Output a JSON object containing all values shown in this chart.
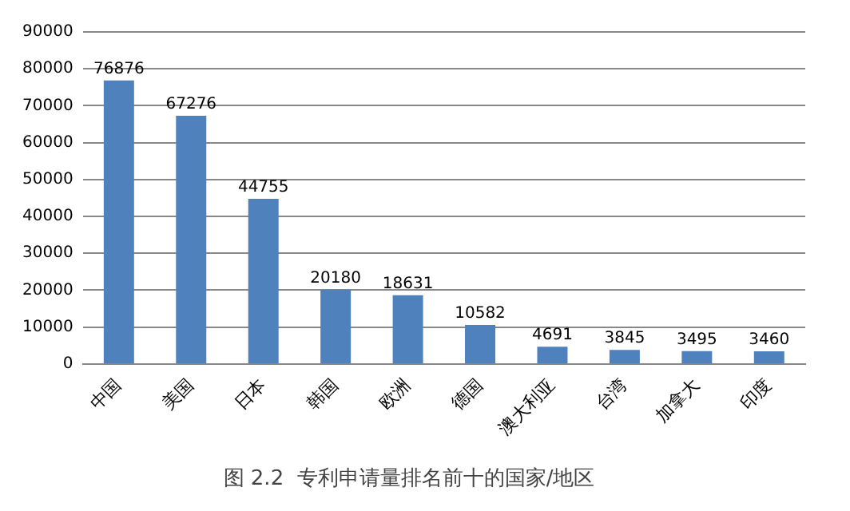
{
  "chart_data": {
    "type": "bar",
    "title": "图 2.2  专利申请量排名前十的国家/地区",
    "categories": [
      "中国",
      "美国",
      "日本",
      "韩国",
      "欧洲",
      "德国",
      "澳大利亚",
      "台湾",
      "加拿大",
      "印度"
    ],
    "values": [
      76876,
      67276,
      44755,
      20180,
      18631,
      10582,
      4691,
      3845,
      3495,
      3460
    ],
    "color": "#4f81bd",
    "ylim": [
      0,
      90000
    ],
    "yticks": [
      0,
      10000,
      20000,
      30000,
      40000,
      50000,
      60000,
      70000,
      80000,
      90000
    ],
    "grid": "y",
    "data_labels": true,
    "legend": false
  }
}
